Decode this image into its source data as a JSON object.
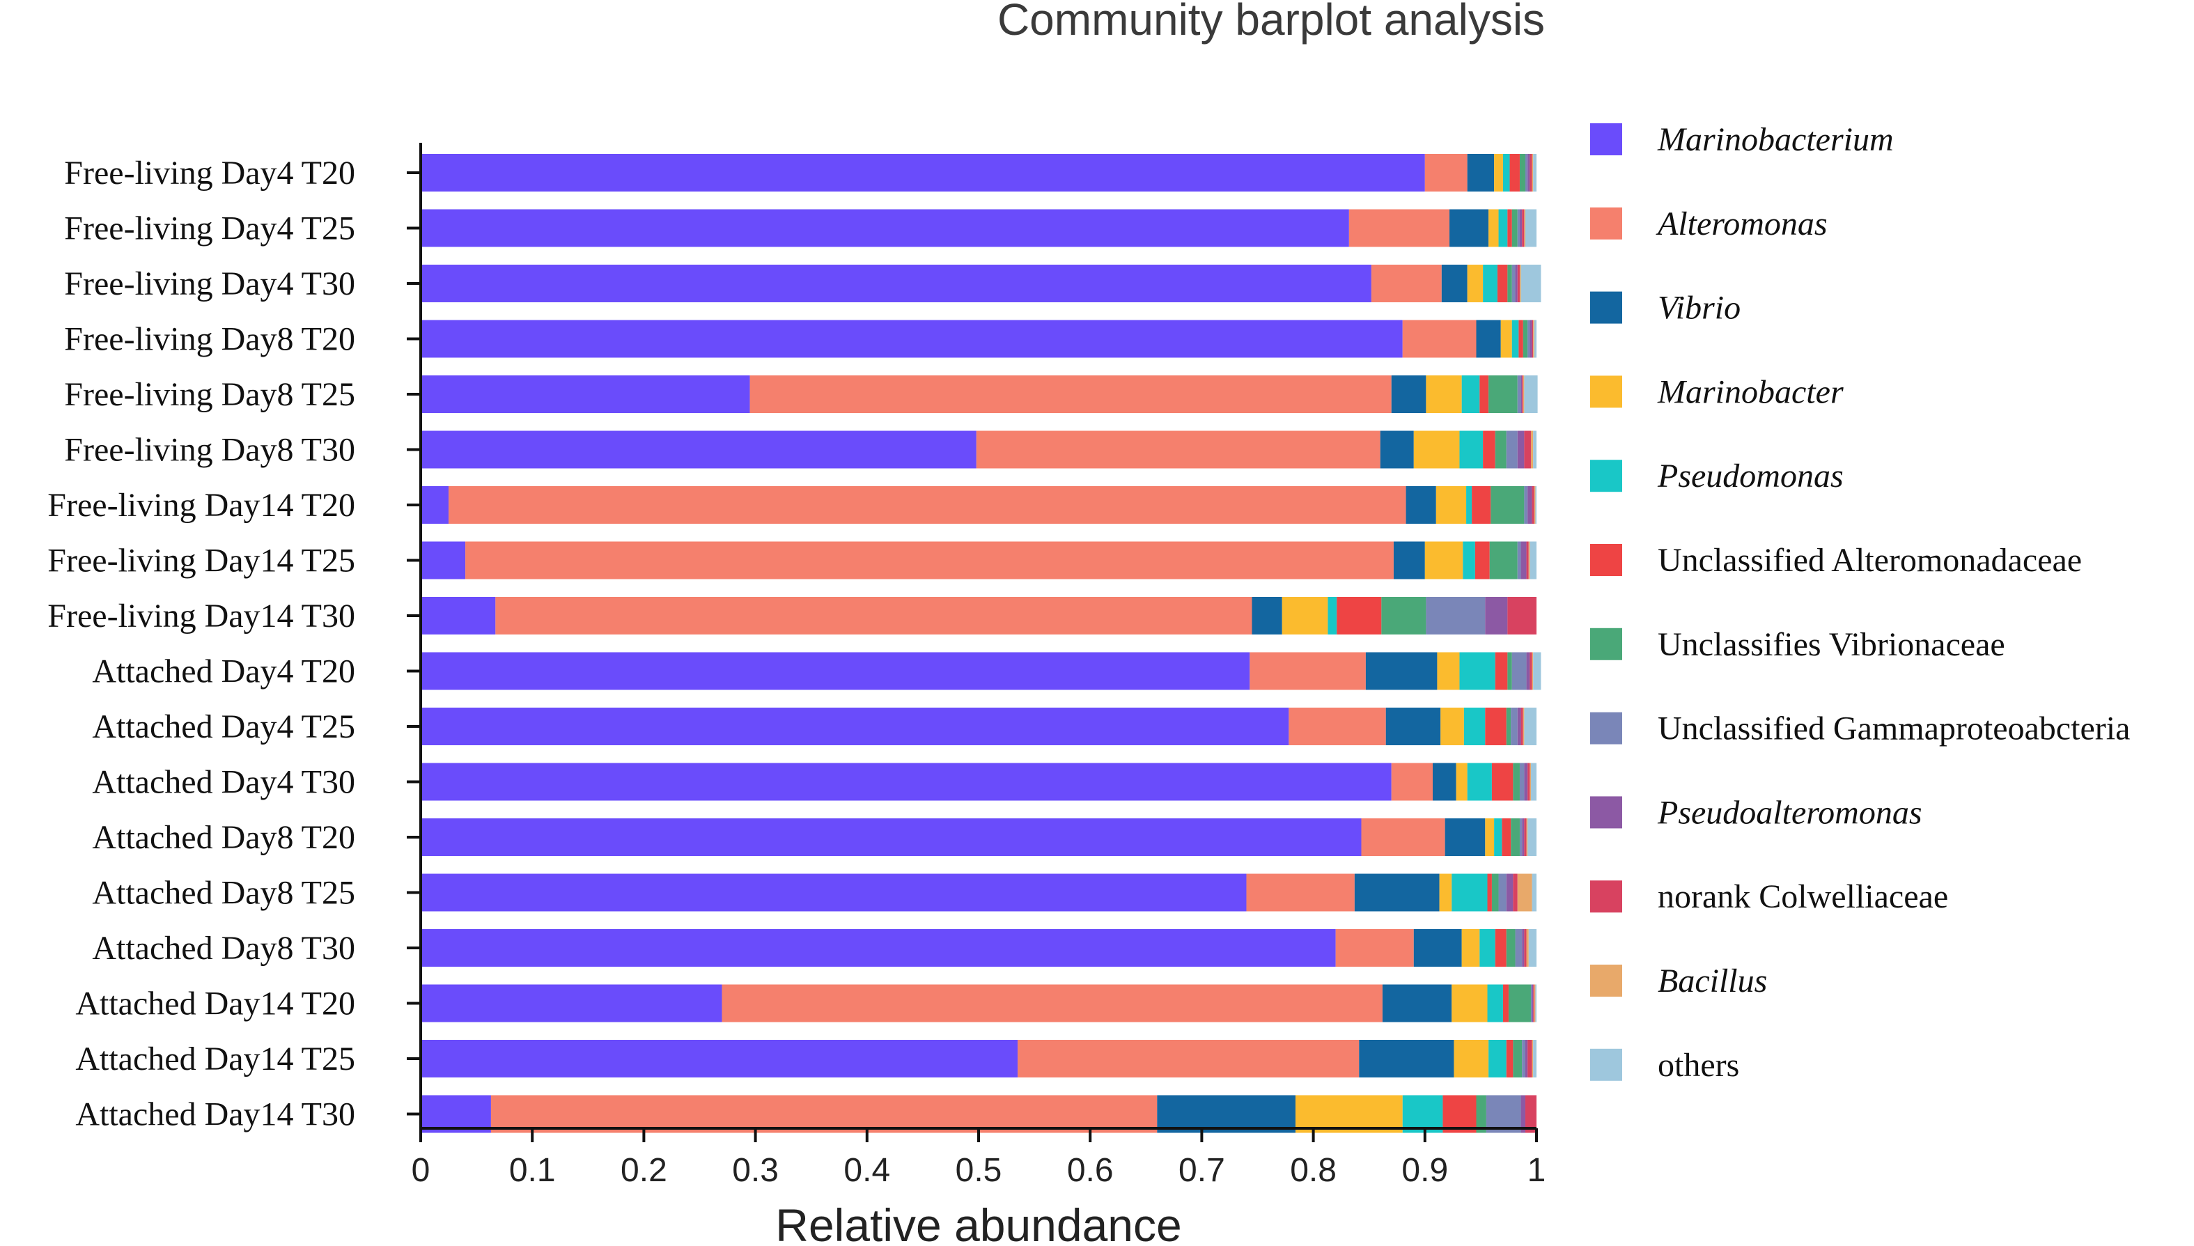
{
  "chart_data": {
    "type": "bar",
    "orientation": "horizontal",
    "stacked": true,
    "title": "Community barplot analysis",
    "xlabel": "Relative abundance",
    "ylabel": "",
    "xlim": [
      0,
      1
    ],
    "xticks": [
      0,
      0.1,
      0.2,
      0.3,
      0.4,
      0.5,
      0.6,
      0.7,
      0.8,
      0.9,
      1
    ],
    "xtick_labels": [
      "0",
      "0.1",
      "0.2",
      "0.3",
      "0.4",
      "0.5",
      "0.6",
      "0.7",
      "0.8",
      "0.9",
      "1"
    ],
    "categories": [
      "Free-living Day4 T20",
      "Free-living Day4 T25",
      "Free-living Day4 T30",
      "Free-living Day8 T20",
      "Free-living Day8 T25",
      "Free-living Day8 T30",
      "Free-living Day14 T20",
      "Free-living Day14 T25",
      "Free-living Day14 T30",
      "Attached Day4 T20",
      "Attached Day4 T25",
      "Attached Day4 T30",
      "Attached Day8 T20",
      "Attached Day8 T25",
      "Attached Day8 T30",
      "Attached Day14 T20",
      "Attached Day14 T25",
      "Attached Day14 T30"
    ],
    "legend_position": "right",
    "series": [
      {
        "name": "Marinobacterium",
        "italic": true,
        "color": "#6a4cfb",
        "values": [
          0.9,
          0.832,
          0.852,
          0.88,
          0.295,
          0.498,
          0.025,
          0.04,
          0.067,
          0.743,
          0.778,
          0.87,
          0.843,
          0.74,
          0.82,
          0.27,
          0.535,
          0.063
        ]
      },
      {
        "name": "Alteromonas",
        "italic": true,
        "color": "#f5806d",
        "values": [
          0.038,
          0.09,
          0.063,
          0.066,
          0.575,
          0.362,
          0.858,
          0.832,
          0.678,
          0.104,
          0.087,
          0.037,
          0.075,
          0.097,
          0.07,
          0.592,
          0.306,
          0.597
        ]
      },
      {
        "name": "Vibrio",
        "italic": true,
        "color": "#1366a0",
        "values": [
          0.024,
          0.035,
          0.023,
          0.022,
          0.031,
          0.03,
          0.027,
          0.028,
          0.027,
          0.064,
          0.049,
          0.021,
          0.036,
          0.076,
          0.043,
          0.062,
          0.085,
          0.124
        ]
      },
      {
        "name": "Marinobacter",
        "italic": true,
        "color": "#fbbb2e",
        "values": [
          0.008,
          0.009,
          0.014,
          0.01,
          0.032,
          0.041,
          0.027,
          0.034,
          0.041,
          0.02,
          0.021,
          0.01,
          0.008,
          0.011,
          0.016,
          0.032,
          0.031,
          0.096
        ]
      },
      {
        "name": "Pseudomonas",
        "italic": true,
        "color": "#19c7c7",
        "values": [
          0.006,
          0.008,
          0.013,
          0.006,
          0.016,
          0.021,
          0.005,
          0.011,
          0.008,
          0.032,
          0.019,
          0.022,
          0.007,
          0.032,
          0.014,
          0.014,
          0.016,
          0.036
        ]
      },
      {
        "name": "Unclassified Alteromonadaceae",
        "italic": false,
        "color": "#ee4444",
        "values": [
          0.009,
          0.004,
          0.009,
          0.004,
          0.008,
          0.011,
          0.017,
          0.013,
          0.04,
          0.011,
          0.019,
          0.019,
          0.008,
          0.004,
          0.01,
          0.005,
          0.006,
          0.03
        ]
      },
      {
        "name": "Unclassifies Vibrionaceae",
        "italic": false,
        "color": "#4aa878",
        "values": [
          0.005,
          0.005,
          0.004,
          0.004,
          0.026,
          0.01,
          0.03,
          0.025,
          0.04,
          0.004,
          0.004,
          0.006,
          0.008,
          0.006,
          0.008,
          0.02,
          0.008,
          0.009
        ]
      },
      {
        "name": "Unclassified Gammaproteoabcteria",
        "italic": false,
        "color": "#7a86b8",
        "values": [
          0.002,
          0.002,
          0.003,
          0.002,
          0.003,
          0.01,
          0.003,
          0.003,
          0.053,
          0.013,
          0.006,
          0.004,
          0.002,
          0.007,
          0.006,
          0.001,
          0.003,
          0.031
        ]
      },
      {
        "name": "Pseudoalteromonas",
        "italic": true,
        "color": "#8c59a4",
        "values": [
          0.002,
          0.002,
          0.002,
          0.002,
          0.001,
          0.006,
          0.004,
          0.005,
          0.02,
          0.003,
          0.003,
          0.003,
          0.002,
          0.006,
          0.002,
          0.001,
          0.002,
          0.004
        ]
      },
      {
        "name": "norank Colwelliaceae",
        "italic": false,
        "color": "#d84260",
        "values": [
          0.002,
          0.002,
          0.002,
          0.001,
          0.001,
          0.006,
          0.002,
          0.002,
          0.026,
          0.002,
          0.002,
          0.002,
          0.002,
          0.004,
          0.002,
          0.001,
          0.004,
          0.01
        ]
      },
      {
        "name": "Bacillus",
        "italic": true,
        "color": "#e8a96a",
        "values": [
          0.001,
          0.001,
          0.001,
          0.001,
          0.001,
          0.002,
          0.001,
          0.001,
          0.0,
          0.001,
          0.001,
          0.001,
          0.001,
          0.013,
          0.002,
          0.001,
          0.001,
          0.0
        ]
      },
      {
        "name": "others",
        "italic": false,
        "color": "#9ec7dd",
        "values": [
          0.003,
          0.01,
          0.018,
          0.002,
          0.012,
          0.003,
          0.001,
          0.006,
          0.0,
          0.007,
          0.011,
          0.005,
          0.008,
          0.004,
          0.007,
          0.001,
          0.003,
          0.0
        ]
      }
    ]
  }
}
